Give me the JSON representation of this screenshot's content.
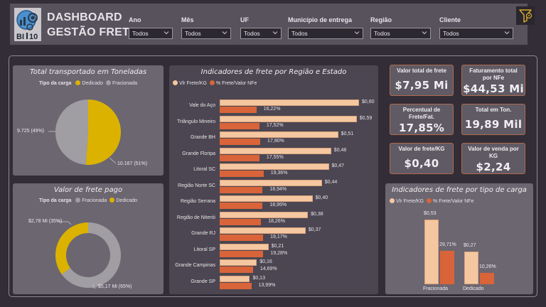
{
  "header": {
    "title_line1": "DASHBOARD",
    "title_line2": "GESTÃO FRETE",
    "logo_text": "BI10",
    "filters": [
      {
        "label": "Ano",
        "value": "Todos"
      },
      {
        "label": "Mês",
        "value": "Todos"
      },
      {
        "label": "UF",
        "value": "Todos"
      },
      {
        "label": "Município de entrega",
        "value": "Todos"
      },
      {
        "label": "Região",
        "value": "Todos"
      },
      {
        "label": "Cliente",
        "value": "Todos"
      }
    ],
    "reset_icon": "filter-reset-icon"
  },
  "colors": {
    "dedicado": "#dbb200",
    "fracionada": "#a09ea3",
    "vlr_frete_kg": "#f5c7a0",
    "pct_frete": "#d9643a",
    "card_border": "#b06a4e"
  },
  "cards": [
    {
      "label": "Valor total de frete",
      "value": "$7,95 Mi"
    },
    {
      "label": "Faturamento total por NFe",
      "value": "$44,53 Mi"
    },
    {
      "label": "Percentual de Frete/Fat.",
      "value": "17,85%"
    },
    {
      "label": "Total em Ton.",
      "value": "19,89 Mil"
    },
    {
      "label": "Valor de frete/KG",
      "value": "$0,40"
    },
    {
      "label": "Valor de venda por KG",
      "value": "$2,24"
    }
  ],
  "chart_data": [
    {
      "type": "pie",
      "title": "Total transportado em Toneladas",
      "legend_title": "Tipo da carga",
      "legend": [
        "Dedicado",
        "Fracionada"
      ],
      "slices": [
        {
          "name": "Dedicado",
          "value": 10167,
          "percent": 51,
          "label": "10.167 (51%)"
        },
        {
          "name": "Fracionada",
          "value": 9725,
          "percent": 49,
          "label": "9.725 (49%)"
        }
      ]
    },
    {
      "type": "pie",
      "subtype": "donut",
      "title": "Valor de frete pago",
      "legend_title": "Tipo da carga",
      "legend": [
        "Fracionada",
        "Dedicado"
      ],
      "slices": [
        {
          "name": "Fracionada",
          "value": 5.17,
          "percent": 65,
          "label": "$5,17 Mi (65%)"
        },
        {
          "name": "Dedicado",
          "value": 2.78,
          "percent": 35,
          "label": "$2,78 Mi (35%)"
        }
      ]
    },
    {
      "type": "bar",
      "orientation": "horizontal",
      "title": "Indicadores de frete por Região e Estado",
      "legend": [
        "Vlr Frete/KG",
        "% Frete/Valor NFe"
      ],
      "categories": [
        "Vale do Aço",
        "Triângulo Mineiro",
        "Grande BH",
        "Grande Floripa",
        "Litoral SC",
        "Região Norte SC",
        "Região Serrana",
        "Região de Niterói",
        "Grande RJ",
        "Litoral SP",
        "Grande Campinas",
        "Grande SP"
      ],
      "series": [
        {
          "name": "Vlr Frete/KG",
          "values": [
            0.6,
            0.59,
            0.51,
            0.48,
            0.47,
            0.44,
            0.4,
            0.38,
            0.37,
            0.21,
            0.16,
            0.13
          ],
          "labels": [
            "$0,60",
            "$0,59",
            "$0,51",
            "$0,48",
            "$0,47",
            "$0,44",
            "$0,40",
            "$0,38",
            "$0,37",
            "$0,21",
            "$0,16",
            "$0,13"
          ]
        },
        {
          "name": "% Frete/Valor NFe",
          "values": [
            16.22,
            17.52,
            17.9,
            17.55,
            19.36,
            18.94,
            18.95,
            18.26,
            19.17,
            19.28,
            14.69,
            13.99
          ],
          "labels": [
            "16,22%",
            "17,52%",
            "17,90%",
            "17,55%",
            "19,36%",
            "18,94%",
            "18,95%",
            "18,26%",
            "19,17%",
            "19,28%",
            "14,69%",
            "13,99%"
          ]
        }
      ]
    },
    {
      "type": "bar",
      "orientation": "vertical",
      "title": "Indicadores de frete por tipo de carga",
      "legend": [
        "Vlr Frete/KG",
        "% Frete/Valor NFe"
      ],
      "categories": [
        "Fracionada",
        "Dedicado"
      ],
      "series": [
        {
          "name": "Vlr Frete/KG",
          "values": [
            0.53,
            0.27
          ],
          "labels": [
            "$0,53",
            "$0,27"
          ]
        },
        {
          "name": "% Frete/Valor NFe",
          "values": [
            29.71,
            10.26
          ],
          "labels": [
            "29,71%",
            "10,26%"
          ]
        }
      ]
    }
  ]
}
